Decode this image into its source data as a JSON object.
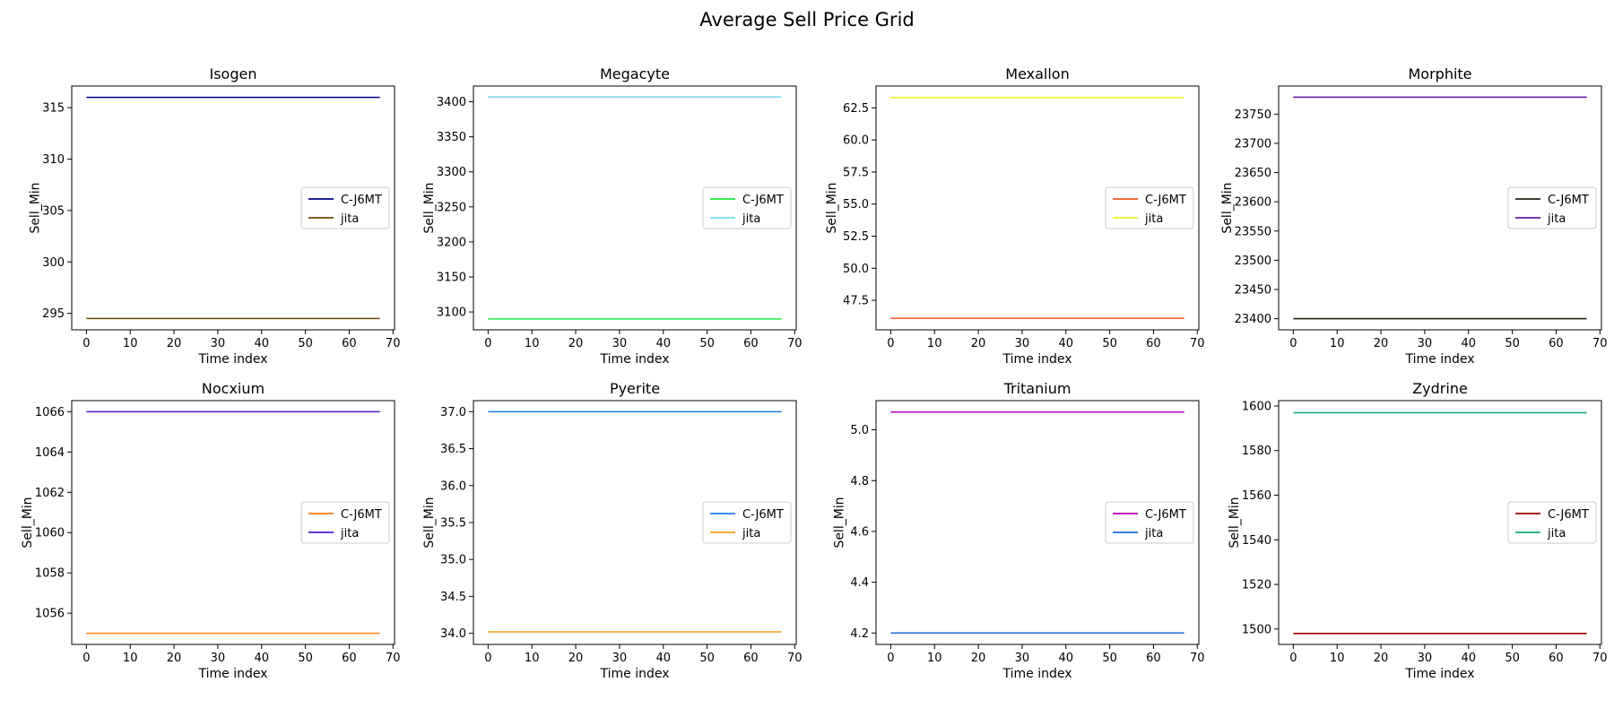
{
  "title": "Average Sell Price Grid",
  "chart_data": [
    {
      "type": "line",
      "title": "Isogen",
      "xlabel": "Time index",
      "ylabel": "Sell_Min",
      "x_range": [
        0,
        67
      ],
      "xlim": [
        -3.35,
        70.35
      ],
      "ylim": [
        293.4,
        317.1
      ],
      "xticks": [
        0,
        10,
        20,
        30,
        40,
        50,
        60,
        70
      ],
      "xtick_labels": [
        "0",
        "10",
        "20",
        "30",
        "40",
        "50",
        "60",
        "70"
      ],
      "yticks": [
        295,
        300,
        305,
        310,
        315
      ],
      "ytick_labels": [
        "295",
        "300",
        "305",
        "310",
        "315"
      ],
      "grid": false,
      "legend_position": "center-right",
      "series": [
        {
          "name": "C-J6MT",
          "color": "#00008b",
          "values": [
            316.0,
            316.0
          ]
        },
        {
          "name": "jita",
          "color": "#6b4a00",
          "values": [
            294.5,
            294.5
          ]
        }
      ]
    },
    {
      "type": "line",
      "title": "Megacyte",
      "xlabel": "Time index",
      "ylabel": "Sell_Min",
      "x_range": [
        0,
        67
      ],
      "xlim": [
        -3.35,
        70.35
      ],
      "ylim": [
        3074.5,
        3422.5
      ],
      "xticks": [
        0,
        10,
        20,
        30,
        40,
        50,
        60,
        70
      ],
      "xtick_labels": [
        "0",
        "10",
        "20",
        "30",
        "40",
        "50",
        "60",
        "70"
      ],
      "yticks": [
        3100,
        3150,
        3200,
        3250,
        3300,
        3350,
        3400
      ],
      "ytick_labels": [
        "3100",
        "3150",
        "3200",
        "3250",
        "3300",
        "3350",
        "3400"
      ],
      "grid": false,
      "legend_position": "center-right",
      "series": [
        {
          "name": "C-J6MT",
          "color": "#22e63c",
          "values": [
            3090,
            3090
          ]
        },
        {
          "name": "jita",
          "color": "#72d8f0",
          "values": [
            3407,
            3407
          ]
        }
      ]
    },
    {
      "type": "line",
      "title": "Mexallon",
      "xlabel": "Time index",
      "ylabel": "Sell_Min",
      "x_range": [
        0,
        67
      ],
      "xlim": [
        -3.35,
        70.35
      ],
      "ylim": [
        45.2,
        64.2
      ],
      "xticks": [
        0,
        10,
        20,
        30,
        40,
        50,
        60,
        70
      ],
      "xtick_labels": [
        "0",
        "10",
        "20",
        "30",
        "40",
        "50",
        "60",
        "70"
      ],
      "yticks": [
        47.5,
        50.0,
        52.5,
        55.0,
        57.5,
        60.0,
        62.5
      ],
      "ytick_labels": [
        "47.5",
        "50.0",
        "52.5",
        "55.0",
        "57.5",
        "60.0",
        "62.5"
      ],
      "grid": false,
      "legend_position": "center-right",
      "series": [
        {
          "name": "C-J6MT",
          "color": "#e8561a",
          "values": [
            46.1,
            46.1
          ]
        },
        {
          "name": "jita",
          "color": "#ecec2a",
          "values": [
            63.3,
            63.3
          ]
        }
      ]
    },
    {
      "type": "line",
      "title": "Morphite",
      "xlabel": "Time index",
      "ylabel": "Sell_Min",
      "x_range": [
        0,
        67
      ],
      "xlim": [
        -3.35,
        70.35
      ],
      "ylim": [
        23381,
        23798
      ],
      "xticks": [
        0,
        10,
        20,
        30,
        40,
        50,
        60,
        70
      ],
      "xtick_labels": [
        "0",
        "10",
        "20",
        "30",
        "40",
        "50",
        "60",
        "70"
      ],
      "yticks": [
        23400,
        23450,
        23500,
        23550,
        23600,
        23650,
        23700,
        23750
      ],
      "ytick_labels": [
        "23400",
        "23450",
        "23500",
        "23550",
        "23600",
        "23650",
        "23700",
        "23750"
      ],
      "grid": false,
      "legend_position": "center-right",
      "series": [
        {
          "name": "C-J6MT",
          "color": "#1a2410",
          "values": [
            23400,
            23400
          ]
        },
        {
          "name": "jita",
          "color": "#6a1aa8",
          "values": [
            23779,
            23779
          ]
        }
      ]
    },
    {
      "type": "line",
      "title": "Nocxium",
      "xlabel": "Time index",
      "ylabel": "Sell_Min",
      "x_range": [
        0,
        67
      ],
      "xlim": [
        -3.35,
        70.35
      ],
      "ylim": [
        1054.45,
        1066.55
      ],
      "xticks": [
        0,
        10,
        20,
        30,
        40,
        50,
        60,
        70
      ],
      "xtick_labels": [
        "0",
        "10",
        "20",
        "30",
        "40",
        "50",
        "60",
        "70"
      ],
      "yticks": [
        1056,
        1058,
        1060,
        1062,
        1064,
        1066
      ],
      "ytick_labels": [
        "1056",
        "1058",
        "1060",
        "1062",
        "1064",
        "1066"
      ],
      "grid": false,
      "legend_position": "center-right",
      "series": [
        {
          "name": "C-J6MT",
          "color": "#ff7f0e",
          "values": [
            1055,
            1055
          ]
        },
        {
          "name": "jita",
          "color": "#4a1ac8",
          "values": [
            1066,
            1066
          ]
        }
      ]
    },
    {
      "type": "line",
      "title": "Pyerite",
      "xlabel": "Time index",
      "ylabel": "Sell_Min",
      "x_range": [
        0,
        67
      ],
      "xlim": [
        -3.35,
        70.35
      ],
      "ylim": [
        33.85,
        37.15
      ],
      "xticks": [
        0,
        10,
        20,
        30,
        40,
        50,
        60,
        70
      ],
      "xtick_labels": [
        "0",
        "10",
        "20",
        "30",
        "40",
        "50",
        "60",
        "70"
      ],
      "yticks": [
        34.0,
        34.5,
        35.0,
        35.5,
        36.0,
        36.5,
        37.0
      ],
      "ytick_labels": [
        "34.0",
        "34.5",
        "35.0",
        "35.5",
        "36.0",
        "36.5",
        "37.0"
      ],
      "grid": false,
      "legend_position": "center-right",
      "series": [
        {
          "name": "C-J6MT",
          "color": "#1a7fe8",
          "values": [
            37.0,
            37.0
          ]
        },
        {
          "name": "jita",
          "color": "#f0a014",
          "values": [
            34.02,
            34.02
          ]
        }
      ]
    },
    {
      "type": "line",
      "title": "Tritanium",
      "xlabel": "Time index",
      "ylabel": "Sell_Min",
      "x_range": [
        0,
        67
      ],
      "xlim": [
        -3.35,
        70.35
      ],
      "ylim": [
        4.155,
        5.115
      ],
      "xticks": [
        0,
        10,
        20,
        30,
        40,
        50,
        60,
        70
      ],
      "xtick_labels": [
        "0",
        "10",
        "20",
        "30",
        "40",
        "50",
        "60",
        "70"
      ],
      "yticks": [
        4.2,
        4.4,
        4.6,
        4.8,
        5.0
      ],
      "ytick_labels": [
        "4.2",
        "4.4",
        "4.6",
        "4.8",
        "5.0"
      ],
      "grid": false,
      "legend_position": "center-right",
      "series": [
        {
          "name": "C-J6MT",
          "color": "#b000b8",
          "values": [
            5.07,
            5.07
          ]
        },
        {
          "name": "jita",
          "color": "#1a6ed8",
          "values": [
            4.2,
            4.2
          ]
        }
      ]
    },
    {
      "type": "line",
      "title": "Zydrine",
      "xlabel": "Time index",
      "ylabel": "Sell_Min",
      "x_range": [
        0,
        67
      ],
      "xlim": [
        -3.35,
        70.35
      ],
      "ylim": [
        1493.1,
        1602.4
      ],
      "xticks": [
        0,
        10,
        20,
        30,
        40,
        50,
        60,
        70
      ],
      "xtick_labels": [
        "0",
        "10",
        "20",
        "30",
        "40",
        "50",
        "60",
        "70"
      ],
      "yticks": [
        1500,
        1520,
        1540,
        1560,
        1580,
        1600
      ],
      "ytick_labels": [
        "1500",
        "1520",
        "1540",
        "1560",
        "1580",
        "1600"
      ],
      "grid": false,
      "legend_position": "center-right",
      "series": [
        {
          "name": "C-J6MT",
          "color": "#a00000",
          "values": [
            1498,
            1498
          ]
        },
        {
          "name": "jita",
          "color": "#10b070",
          "values": [
            1597,
            1597
          ]
        }
      ]
    }
  ]
}
